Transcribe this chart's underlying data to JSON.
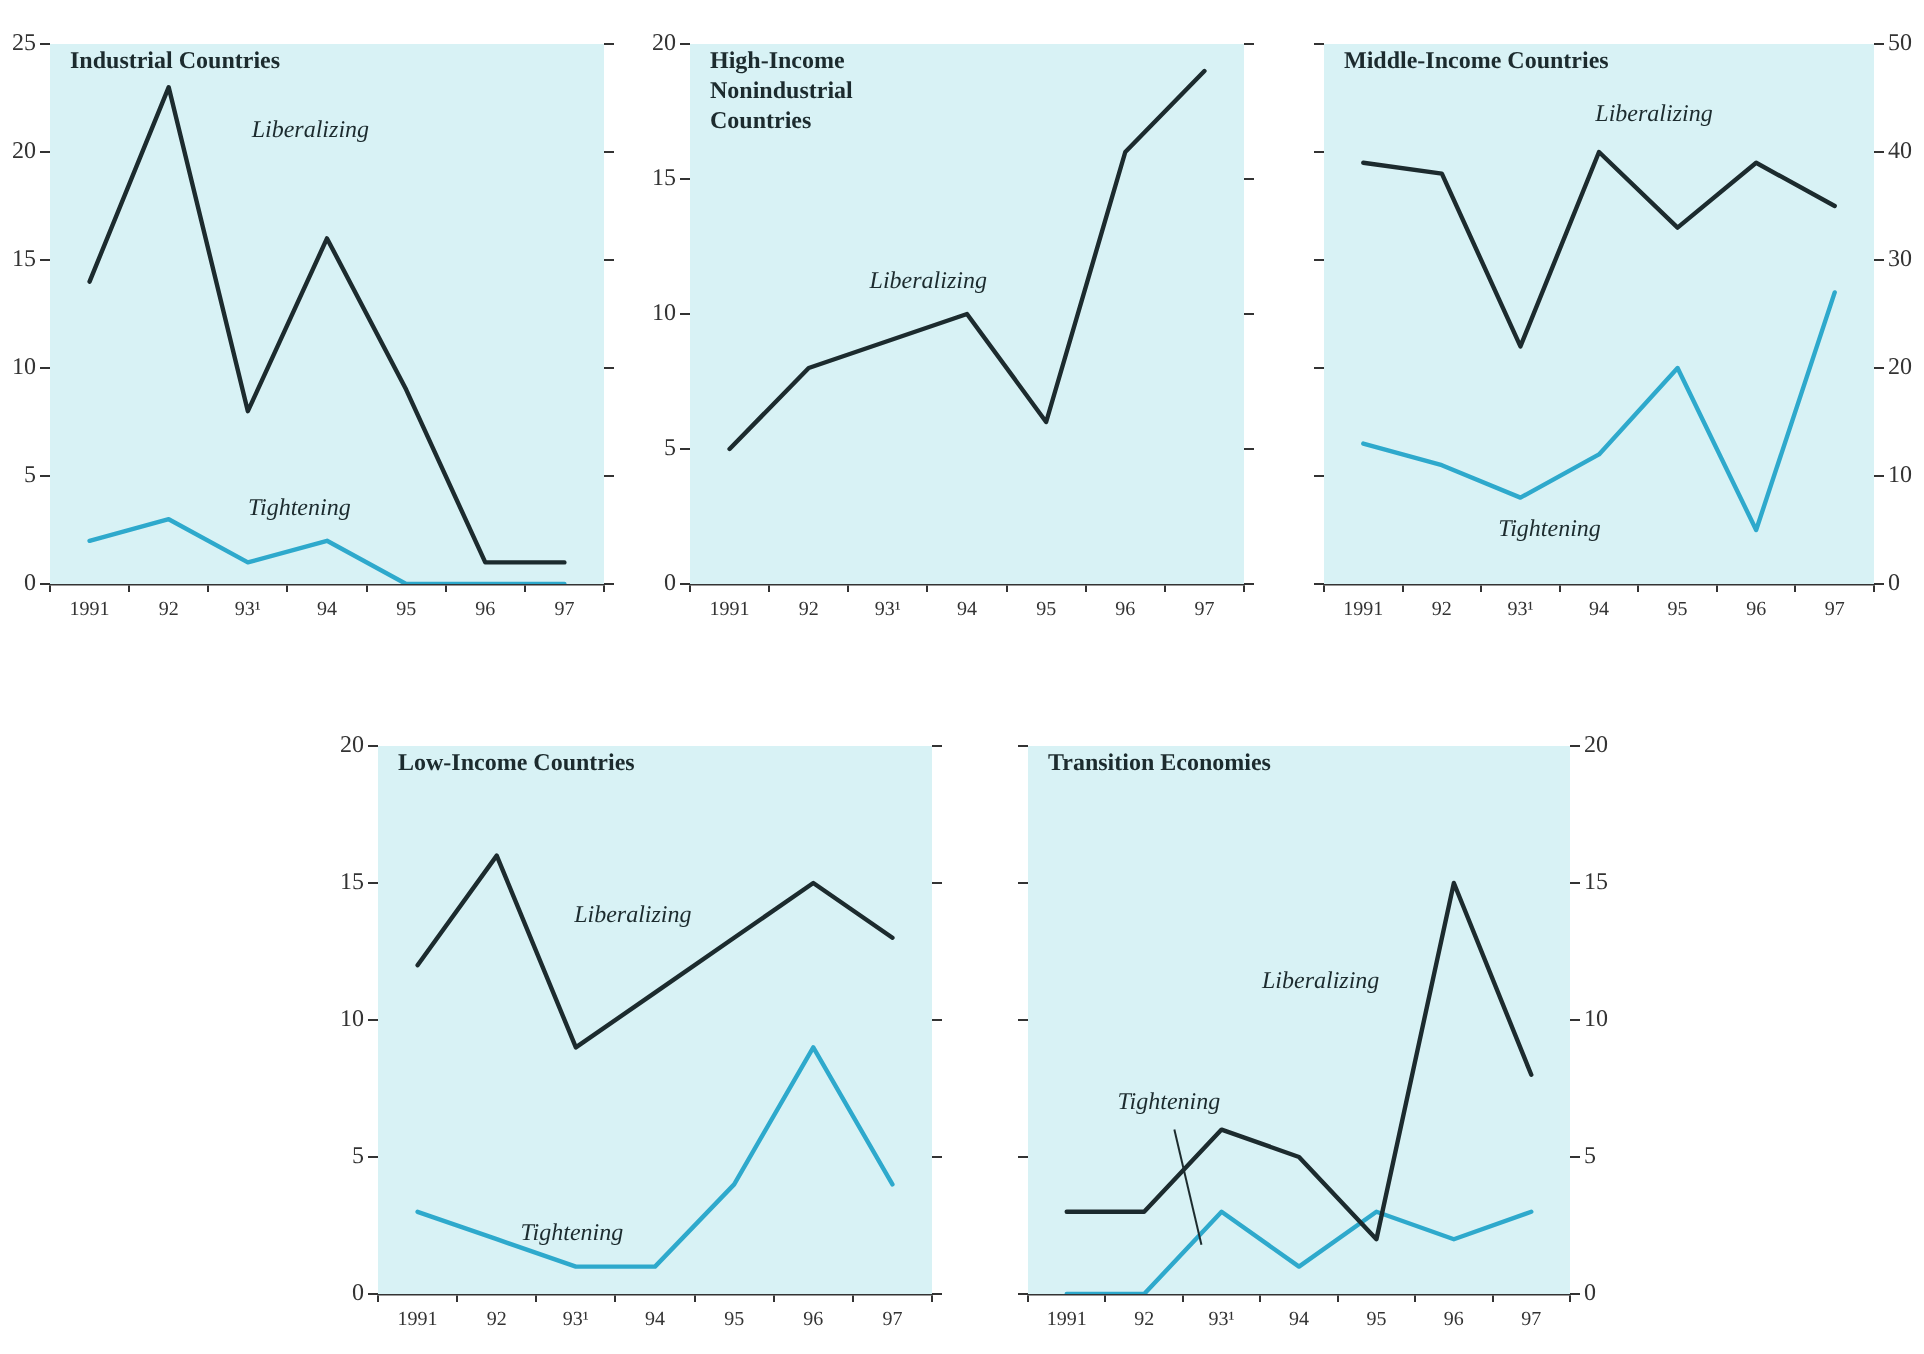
{
  "chart_data": [
    {
      "type": "line",
      "title": "Industrial Countries",
      "categories": [
        "1991",
        "92",
        "93¹",
        "94",
        "95",
        "96",
        "97"
      ],
      "ylim": [
        0,
        25
      ],
      "yticks": [
        0,
        5,
        10,
        15,
        20,
        25
      ],
      "series": [
        {
          "name": "Liberalizing",
          "color": "#1c2b2e",
          "values": [
            14,
            23,
            8,
            16,
            9,
            1,
            1
          ]
        },
        {
          "name": "Tightening",
          "color": "#2ea9cc",
          "values": [
            2,
            3,
            1,
            2,
            0,
            0,
            0
          ]
        }
      ]
    },
    {
      "type": "line",
      "title": "High-Income Nonindustrial Countries",
      "categories": [
        "1991",
        "92",
        "93¹",
        "94",
        "95",
        "96",
        "97"
      ],
      "ylim": [
        0,
        20
      ],
      "yticks": [
        0,
        5,
        10,
        15,
        20
      ],
      "series": [
        {
          "name": "Liberalizing",
          "color": "#1c2b2e",
          "values": [
            5,
            8,
            9,
            10,
            6,
            16,
            19
          ]
        }
      ]
    },
    {
      "type": "line",
      "title": "Middle-Income Countries",
      "categories": [
        "1991",
        "92",
        "93¹",
        "94",
        "95",
        "96",
        "97"
      ],
      "y2lim": [
        0,
        50
      ],
      "y2ticks": [
        0,
        10,
        20,
        30,
        40,
        50
      ],
      "series": [
        {
          "name": "Liberalizing",
          "color": "#1c2b2e",
          "axis": "y2",
          "values": [
            39,
            38,
            22,
            40,
            33,
            39,
            35
          ]
        },
        {
          "name": "Tightening",
          "color": "#2ea9cc",
          "axis": "y2",
          "values": [
            13,
            11,
            8,
            12,
            20,
            5,
            27
          ]
        }
      ]
    },
    {
      "type": "line",
      "title": "Low-Income Countries",
      "categories": [
        "1991",
        "92",
        "93¹",
        "94",
        "95",
        "96",
        "97"
      ],
      "ylim": [
        0,
        20
      ],
      "yticks": [
        0,
        5,
        10,
        15,
        20
      ],
      "series": [
        {
          "name": "Liberalizing",
          "color": "#1c2b2e",
          "values": [
            12,
            16,
            9,
            11,
            13,
            15,
            13
          ]
        },
        {
          "name": "Tightening",
          "color": "#2ea9cc",
          "values": [
            3,
            2,
            1,
            1,
            4,
            9,
            4
          ]
        }
      ]
    },
    {
      "type": "line",
      "title": "Transition Economies",
      "categories": [
        "1991",
        "92",
        "93¹",
        "94",
        "95",
        "96",
        "97"
      ],
      "y2lim": [
        0,
        20
      ],
      "y2ticks": [
        0,
        5,
        10,
        15,
        20
      ],
      "series": [
        {
          "name": "Liberalizing",
          "color": "#1c2b2e",
          "axis": "y2",
          "values": [
            3,
            3,
            6,
            5,
            2,
            15,
            8
          ]
        },
        {
          "name": "Tightening",
          "color": "#2ea9cc",
          "axis": "y2",
          "values": [
            0,
            0,
            3,
            1,
            3,
            2,
            3
          ]
        }
      ]
    }
  ]
}
